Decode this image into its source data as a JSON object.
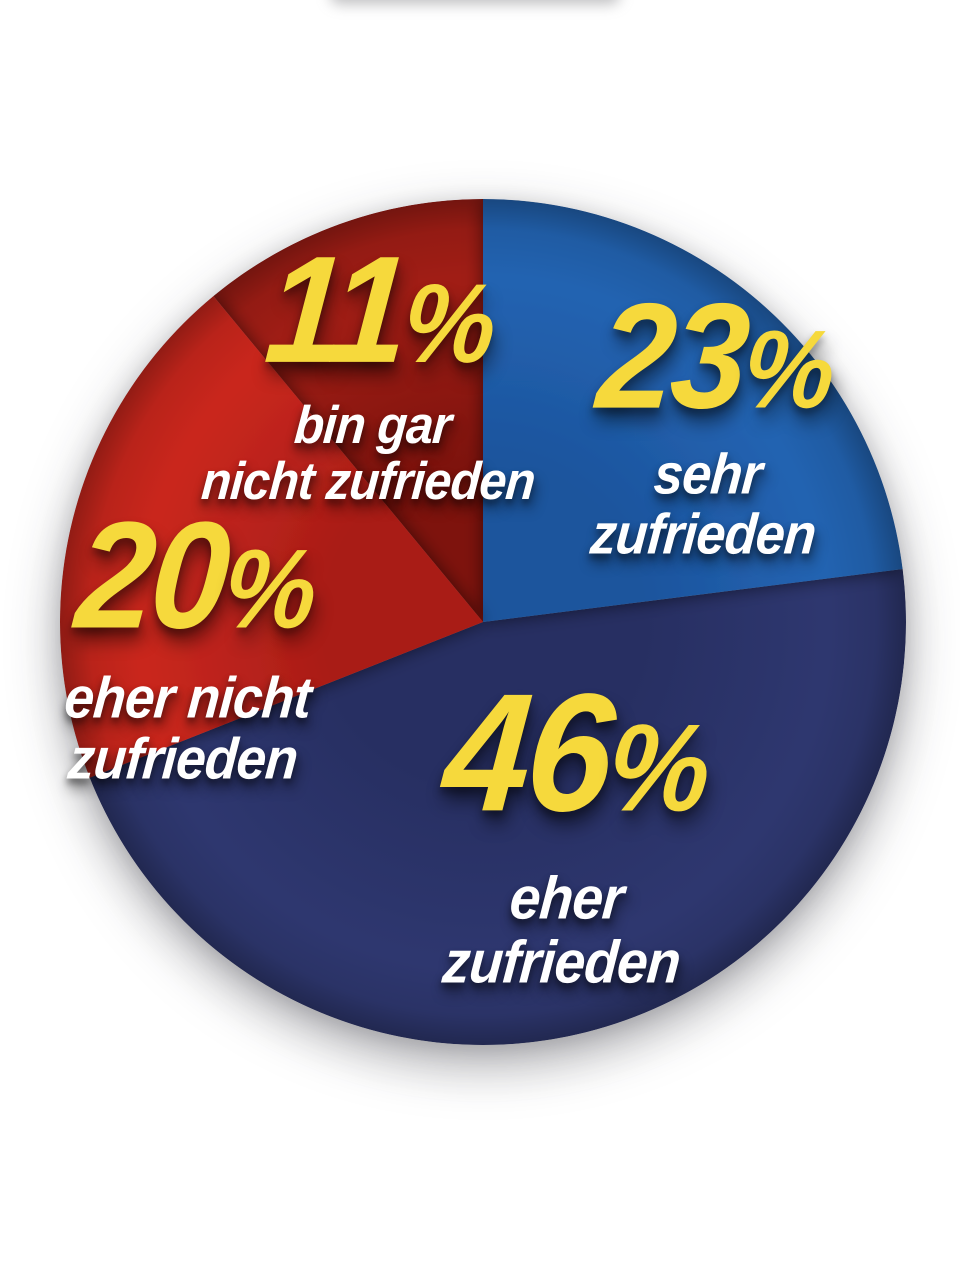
{
  "page": {
    "background": "#FFFFFF"
  },
  "chart_data": {
    "type": "pie",
    "title": "",
    "unit": "%",
    "percent_sign": "%",
    "start_angle_deg": 0,
    "direction": "clockwise",
    "legend_position": "on-slice",
    "value_color": "#F6D93C",
    "label_text_color": "#FFFFFF",
    "slices": [
      {
        "label": "sehr zufrieden",
        "value": 23,
        "line1": "sehr",
        "line2": "zufrieden",
        "color": "#2363B1",
        "shade": "#1C549D"
      },
      {
        "label": "eher zufrieden",
        "value": 46,
        "line1": "eher",
        "line2": "zufrieden",
        "color": "#2E376F",
        "shade": "#272F62"
      },
      {
        "label": "eher nicht zufrieden",
        "value": 20,
        "line1": "eher nicht",
        "line2": "zufrieden",
        "color": "#C9271F",
        "shade": "#A91D17"
      },
      {
        "label": "bin gar nicht zufrieden",
        "value": 11,
        "line1": "bin gar",
        "line2": "nicht zufrieden",
        "color": "#A01D15",
        "shade": "#7E130D"
      }
    ]
  }
}
